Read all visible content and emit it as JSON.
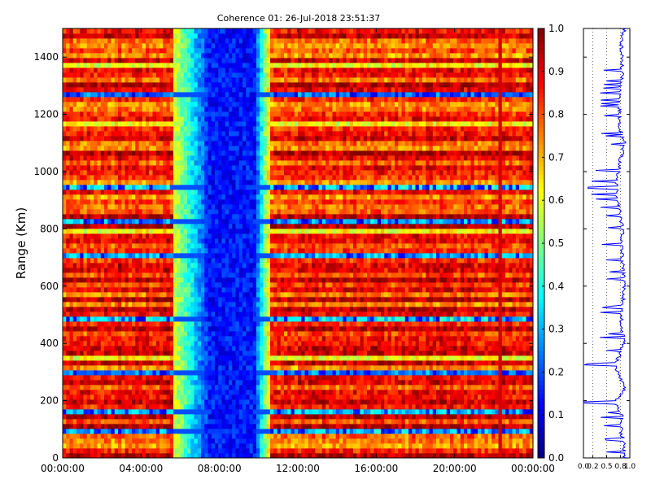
{
  "chart_data": [
    {
      "type": "heatmap",
      "title": "Coherence 01: 26-Jul-2018 23:51:37",
      "xlabel": "",
      "ylabel": "Range (Km)",
      "x_ticks": [
        "00:00:00",
        "04:00:00",
        "08:00:00",
        "12:00:00",
        "16:00:00",
        "20:00:00",
        "00:00:00"
      ],
      "xlim_hours": [
        0,
        24
      ],
      "y_ticks": [
        0,
        200,
        400,
        600,
        800,
        1000,
        1200,
        1400
      ],
      "ylim": [
        0,
        1500
      ],
      "colormap": "jet",
      "color_range": [
        0,
        1
      ],
      "colorbar_ticks": [
        "0.0",
        "0.1",
        "0.2",
        "0.3",
        "0.4",
        "0.5",
        "0.6",
        "0.7",
        "0.8",
        "0.9",
        "1.0"
      ],
      "low_coherence_interval_hours": [
        5.6,
        10.5
      ],
      "deepest_low_hours": [
        7.5,
        9.8
      ],
      "marked_time_hours": 22.4,
      "low_coherence_ranges_km": [
        90,
        160,
        300,
        485,
        710,
        830,
        945,
        1275
      ]
    },
    {
      "type": "line",
      "orientation": "vertical",
      "title": "",
      "xlabel": "",
      "ylabel": "",
      "xlim": [
        0,
        1
      ],
      "x_ticks": [
        "0.0",
        "0.2",
        "0.5",
        "0.8",
        "1.0"
      ],
      "ylim": [
        0,
        1500
      ],
      "color": "#0000ff",
      "profile": [
        {
          "range": 0,
          "value": 0.85
        },
        {
          "range": 60,
          "value": 0.8
        },
        {
          "range": 90,
          "value": 0.5
        },
        {
          "range": 150,
          "value": 0.6
        },
        {
          "range": 195,
          "value": 0.0
        },
        {
          "range": 240,
          "value": 0.85
        },
        {
          "range": 280,
          "value": 0.45
        },
        {
          "range": 325,
          "value": 0.02
        },
        {
          "range": 400,
          "value": 0.8
        },
        {
          "range": 485,
          "value": 0.55
        },
        {
          "range": 600,
          "value": 0.85
        },
        {
          "range": 710,
          "value": 0.6
        },
        {
          "range": 800,
          "value": 0.65
        },
        {
          "range": 945,
          "value": 0.1
        },
        {
          "range": 1005,
          "value": 0.3
        },
        {
          "range": 1100,
          "value": 0.85
        },
        {
          "range": 1150,
          "value": 0.45
        },
        {
          "range": 1275,
          "value": 0.35
        },
        {
          "range": 1350,
          "value": 0.65
        },
        {
          "range": 1455,
          "value": 0.55
        },
        {
          "range": 1500,
          "value": 0.85
        }
      ]
    }
  ]
}
